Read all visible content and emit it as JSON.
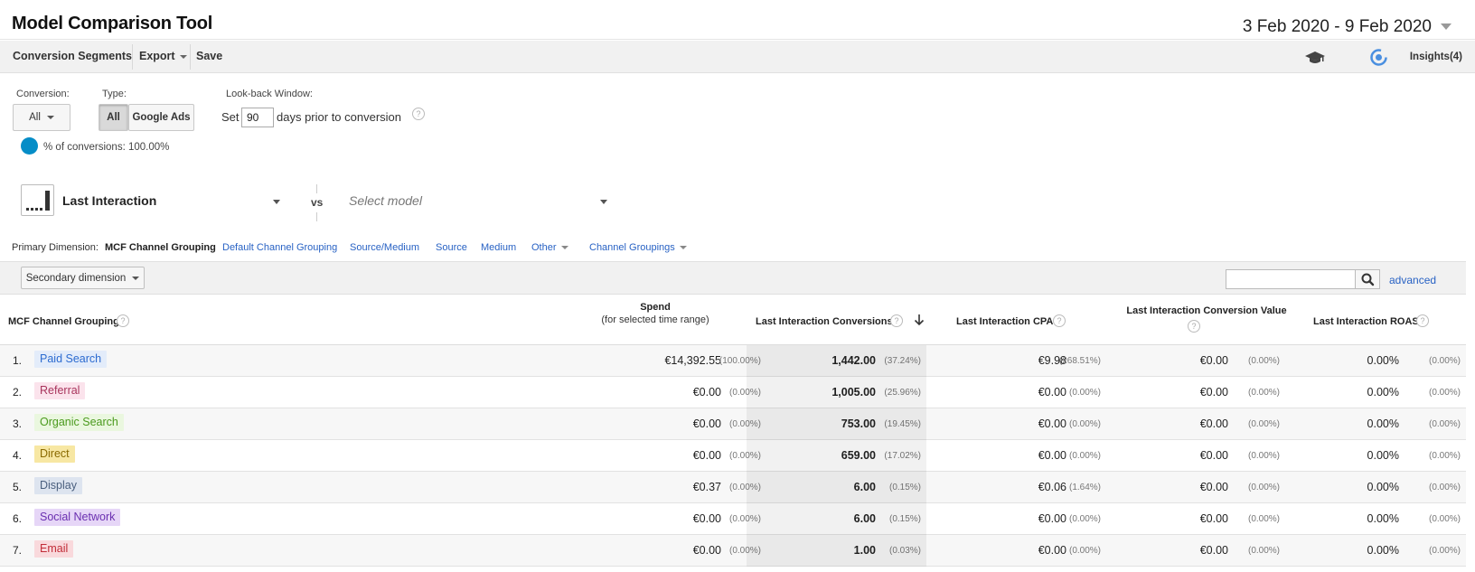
{
  "header": {
    "title": "Model Comparison Tool",
    "date_range": "3 Feb 2020 - 9 Feb 2020"
  },
  "toolbar": {
    "conversion_segments": "Conversion Segments",
    "export": "Export",
    "save": "Save",
    "insights": "Insights(4)"
  },
  "controls": {
    "conversion_label": "Conversion:",
    "conversion_value": "All",
    "type_label": "Type:",
    "type_all": "All",
    "type_google_ads": "Google Ads",
    "lookback_label": "Look-back Window:",
    "lookback_set": "Set",
    "lookback_days": "90",
    "lookback_suffix": "days prior to conversion",
    "pct_conversions": "% of conversions: 100.00%",
    "help": "?"
  },
  "models": {
    "primary": "Last Interaction",
    "vs": "vs",
    "select_placeholder": "Select model"
  },
  "primary_dimension": {
    "label": "Primary Dimension:",
    "current": "MCF Channel Grouping",
    "options": [
      "Default Channel Grouping",
      "Source/Medium",
      "Source",
      "Medium",
      "Other"
    ],
    "channel_groupings": "Channel Groupings"
  },
  "secondary": {
    "button": "Secondary dimension",
    "search_value": "",
    "advanced": "advanced"
  },
  "table": {
    "headers": {
      "channel": "MCF Channel Grouping",
      "spend": "Spend",
      "spend_sub": "(for selected time range)",
      "conversions": "Last Interaction Conversions",
      "cpa": "Last Interaction CPA",
      "conv_value": "Last Interaction Conversion Value",
      "roas": "Last Interaction ROAS"
    },
    "rows": [
      {
        "n": "1.",
        "name": "Paid Search",
        "bg": "#e3ecfa",
        "fg": "#2c6bd0",
        "spend": "€14,392.55",
        "spend_pct": "(100.00%)",
        "conv": "1,442.00",
        "conv_pct": "(37.24%)",
        "cpa": "€9.98",
        "cpa_pct": "(268.51%)",
        "value": "€0.00",
        "value_pct": "(0.00%)",
        "roas": "0.00%",
        "roas_pct": "(0.00%)"
      },
      {
        "n": "2.",
        "name": "Referral",
        "bg": "#fbe3ec",
        "fg": "#a8345c",
        "spend": "€0.00",
        "spend_pct": "(0.00%)",
        "conv": "1,005.00",
        "conv_pct": "(25.96%)",
        "cpa": "€0.00",
        "cpa_pct": "(0.00%)",
        "value": "€0.00",
        "value_pct": "(0.00%)",
        "roas": "0.00%",
        "roas_pct": "(0.00%)"
      },
      {
        "n": "3.",
        "name": "Organic Search",
        "bg": "#eaf7df",
        "fg": "#4b9a1e",
        "spend": "€0.00",
        "spend_pct": "(0.00%)",
        "conv": "753.00",
        "conv_pct": "(19.45%)",
        "cpa": "€0.00",
        "cpa_pct": "(0.00%)",
        "value": "€0.00",
        "value_pct": "(0.00%)",
        "roas": "0.00%",
        "roas_pct": "(0.00%)"
      },
      {
        "n": "4.",
        "name": "Direct",
        "bg": "#f7e7a3",
        "fg": "#8a6a00",
        "spend": "€0.00",
        "spend_pct": "(0.00%)",
        "conv": "659.00",
        "conv_pct": "(17.02%)",
        "cpa": "€0.00",
        "cpa_pct": "(0.00%)",
        "value": "€0.00",
        "value_pct": "(0.00%)",
        "roas": "0.00%",
        "roas_pct": "(0.00%)"
      },
      {
        "n": "5.",
        "name": "Display",
        "bg": "#dde4ef",
        "fg": "#4a5f7e",
        "spend": "€0.37",
        "spend_pct": "(0.00%)",
        "conv": "6.00",
        "conv_pct": "(0.15%)",
        "cpa": "€0.06",
        "cpa_pct": "(1.64%)",
        "value": "€0.00",
        "value_pct": "(0.00%)",
        "roas": "0.00%",
        "roas_pct": "(0.00%)"
      },
      {
        "n": "6.",
        "name": "Social Network",
        "bg": "#e6d6f7",
        "fg": "#6a2fb0",
        "spend": "€0.00",
        "spend_pct": "(0.00%)",
        "conv": "6.00",
        "conv_pct": "(0.15%)",
        "cpa": "€0.00",
        "cpa_pct": "(0.00%)",
        "value": "€0.00",
        "value_pct": "(0.00%)",
        "roas": "0.00%",
        "roas_pct": "(0.00%)"
      },
      {
        "n": "7.",
        "name": "Email",
        "bg": "#f9d9dc",
        "fg": "#c22d39",
        "spend": "€0.00",
        "spend_pct": "(0.00%)",
        "conv": "1.00",
        "conv_pct": "(0.03%)",
        "cpa": "€0.00",
        "cpa_pct": "(0.00%)",
        "value": "€0.00",
        "value_pct": "(0.00%)",
        "roas": "0.00%",
        "roas_pct": "(0.00%)"
      }
    ]
  },
  "icons": {
    "graduation_cap": "graduation-cap-icon",
    "insights": "insights-icon",
    "search": "search-icon",
    "sort": "sort-descending-icon",
    "help": "help-icon",
    "model": "last-interaction-model-icon"
  },
  "colors": {
    "link": "#2862c4",
    "pct_dot": "#058dc7"
  }
}
